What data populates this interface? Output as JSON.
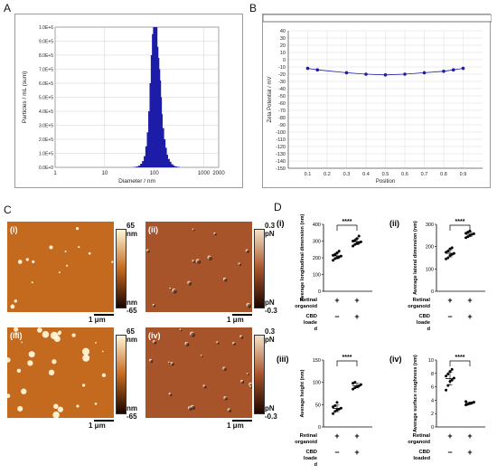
{
  "panels": {
    "A": "A",
    "B": "B",
    "C": "C",
    "D": "D"
  },
  "chart_data": [
    {
      "id": "A",
      "type": "bar",
      "xlabel": "Diameter / nm",
      "ylabel": "Particles / mL (sum)",
      "xscale": "log",
      "xlim": [
        1,
        2000
      ],
      "x_ticks": [
        "1",
        "10",
        "100",
        "1000",
        "2000"
      ],
      "ylim": [
        0,
        1000000.0
      ],
      "y_ticks": [
        "0.0E+0",
        "1.0E+5",
        "2.0E+5",
        "3.0E+5",
        "4.0E+5",
        "5.0E+5",
        "6.0E+5",
        "7.0E+5",
        "8.0E+5",
        "9.0E+5",
        "1.0E+6"
      ],
      "grid": true,
      "color": "#1c1ca8",
      "x": [
        40,
        45,
        50,
        55,
        60,
        65,
        70,
        75,
        80,
        85,
        90,
        95,
        100,
        105,
        110,
        115,
        120,
        125,
        130,
        135,
        140,
        150,
        160,
        170,
        180,
        195,
        210,
        230,
        250,
        280,
        310
      ],
      "values": [
        3000,
        6000,
        12000,
        25000,
        45000,
        80000,
        150000,
        250000,
        400000,
        600000,
        800000,
        950000,
        1000000,
        920000,
        1000000,
        860000,
        780000,
        700000,
        620000,
        500000,
        380000,
        280000,
        200000,
        140000,
        90000,
        60000,
        40000,
        22000,
        12000,
        6000,
        3000
      ]
    },
    {
      "id": "B",
      "type": "line",
      "xlabel": "Position",
      "ylabel": "Zeta Potential / mV",
      "xlim": [
        0,
        1
      ],
      "x_ticks": [
        "0.1",
        "0.2",
        "0.3",
        "0.4",
        "0.5",
        "0.6",
        "0.7",
        "0.8",
        "0.9"
      ],
      "ylim": [
        -150,
        40
      ],
      "y_ticks": [
        "40",
        "30",
        "20",
        "10",
        "0",
        "-10",
        "-20",
        "-30",
        "-40",
        "-50",
        "-60",
        "-70",
        "-80",
        "-90",
        "-100",
        "-110",
        "-120",
        "-130",
        "-140",
        "-150"
      ],
      "grid": true,
      "color": "#1c1ca8",
      "x": [
        0.1,
        0.15,
        0.3,
        0.4,
        0.5,
        0.6,
        0.7,
        0.8,
        0.85,
        0.9
      ],
      "y": [
        -12,
        -14,
        -18,
        -20,
        -21,
        -20,
        -18,
        -16,
        -14,
        -12
      ]
    },
    {
      "id": "D-i",
      "type": "scatter",
      "ylabel": "Average longitudinal dimension (nm)",
      "ylim": [
        0,
        400
      ],
      "y_ticks": [
        "0",
        "100",
        "200",
        "300",
        "400"
      ],
      "significance": "****",
      "group_values": [
        [
          185,
          195,
          200,
          205,
          210,
          215,
          220,
          230,
          240
        ],
        [
          270,
          280,
          285,
          290,
          295,
          300,
          305,
          315,
          330
        ]
      ],
      "row_labels": [
        "Retinal organoid",
        "CBD loaded"
      ],
      "row_signs": [
        [
          "+",
          "+"
        ],
        [
          "−",
          "+"
        ]
      ],
      "row_label_lines": [
        [
          "Retinal",
          "organoid"
        ],
        [
          "CBD",
          "loade",
          "d"
        ]
      ]
    },
    {
      "id": "D-ii",
      "type": "scatter",
      "ylabel": "Average lateral dimension (nm)",
      "ylim": [
        0,
        300
      ],
      "y_ticks": [
        "0",
        "100",
        "200",
        "300"
      ],
      "significance": "****",
      "group_values": [
        [
          145,
          150,
          160,
          165,
          170,
          175,
          180,
          190,
          195
        ],
        [
          240,
          245,
          250,
          255,
          258,
          260,
          265,
          270
        ]
      ],
      "row_labels": [
        "Retinal organoid",
        "CBD loaded"
      ],
      "row_signs": [
        [
          "+",
          "+"
        ],
        [
          "−",
          "+"
        ]
      ],
      "row_label_lines": [
        [
          "Retinal",
          "organoid"
        ],
        [
          "CBD",
          "loade",
          "d"
        ]
      ]
    },
    {
      "id": "D-iii",
      "type": "scatter",
      "ylabel": "Average height (nm)",
      "ylim": [
        0,
        150
      ],
      "y_ticks": [
        "0",
        "50",
        "100",
        "150"
      ],
      "significance": "****",
      "group_values": [
        [
          30,
          35,
          38,
          40,
          42,
          45,
          48,
          55
        ],
        [
          85,
          88,
          90,
          92,
          95,
          98,
          100
        ]
      ],
      "row_labels": [
        "Retinal organoid",
        "CBD loaded"
      ],
      "row_signs": [
        [
          "+",
          "+"
        ],
        [
          "−",
          "+"
        ]
      ],
      "row_label_lines": [
        [
          "Retinal",
          "organoid"
        ],
        [
          "CBD",
          "loade",
          "d"
        ]
      ]
    },
    {
      "id": "D-iv",
      "type": "scatter",
      "ylabel": "Average surface roughness (nm)",
      "ylim": [
        0,
        10
      ],
      "y_ticks": [
        "0",
        "2",
        "4",
        "6",
        "8",
        "10"
      ],
      "significance": "****",
      "group_values": [
        [
          5.5,
          6.2,
          6.8,
          7.0,
          7.3,
          7.6,
          7.9,
          8.3,
          8.6
        ],
        [
          3.3,
          3.4,
          3.5,
          3.6,
          3.7,
          3.8
        ]
      ],
      "row_labels": [
        "Retinal organoid",
        "CBD loaded"
      ],
      "row_signs": [
        [
          "+",
          "+"
        ],
        [
          "−",
          "+"
        ]
      ],
      "row_label_lines": [
        [
          "Retinal",
          "organoid"
        ],
        [
          "CBD",
          "loaded"
        ]
      ]
    }
  ],
  "afm": {
    "images": [
      {
        "id": "i",
        "label": "(i)",
        "cmap": "height"
      },
      {
        "id": "ii",
        "label": "(ii)",
        "cmap": "force"
      },
      {
        "id": "iii",
        "label": "(iii)",
        "cmap": "height"
      },
      {
        "id": "iv",
        "label": "(iv)",
        "cmap": "force"
      }
    ],
    "height_scale": {
      "max": "65",
      "min": "-65",
      "unit": "nm"
    },
    "force_scale": {
      "max": "0.3",
      "min": "-0.3",
      "unit": "pN"
    },
    "scalebar": "1 μm",
    "colors": {
      "height_top": "#fff6d8",
      "height_mid": "#c46a1e",
      "height_bot": "#1a0500",
      "force_top": "#f3e2c8",
      "force_mid": "#a8542a",
      "force_bot": "#1a0500"
    }
  }
}
